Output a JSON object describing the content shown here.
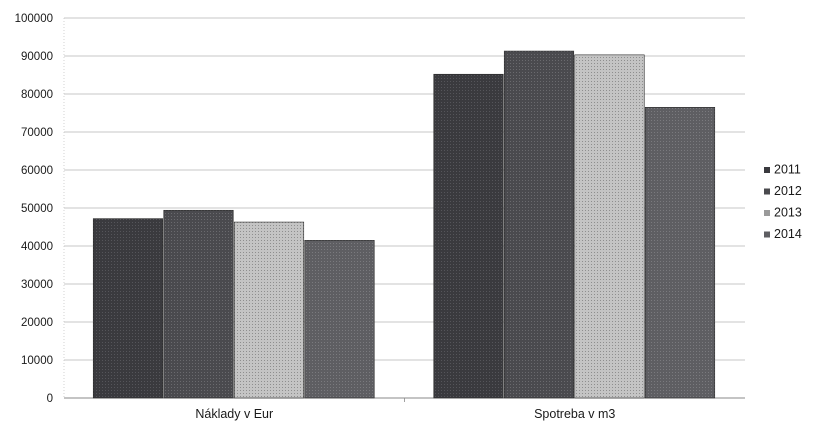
{
  "chart_data": {
    "type": "bar",
    "title": "",
    "xlabel": "",
    "ylabel": "",
    "categories": [
      "Náklady v Eur",
      "Spotreba v m3"
    ],
    "series": [
      {
        "name": "2011",
        "values": [
          47200,
          85200
        ],
        "color": "#3a3a3e"
      },
      {
        "name": "2012",
        "values": [
          49400,
          91300
        ],
        "color": "#4a4a4e"
      },
      {
        "name": "2013",
        "values": [
          46300,
          90300
        ],
        "color": "#b8b8b8"
      },
      {
        "name": "2014",
        "values": [
          41500,
          76500
        ],
        "color": "#5e5e62"
      }
    ],
    "ylim": [
      0,
      100000
    ],
    "yticks": [
      "0",
      "10000",
      "20000",
      "30000",
      "40000",
      "50000",
      "60000",
      "70000",
      "80000",
      "90000",
      "100000"
    ],
    "grid": true,
    "legend_position": "right"
  }
}
